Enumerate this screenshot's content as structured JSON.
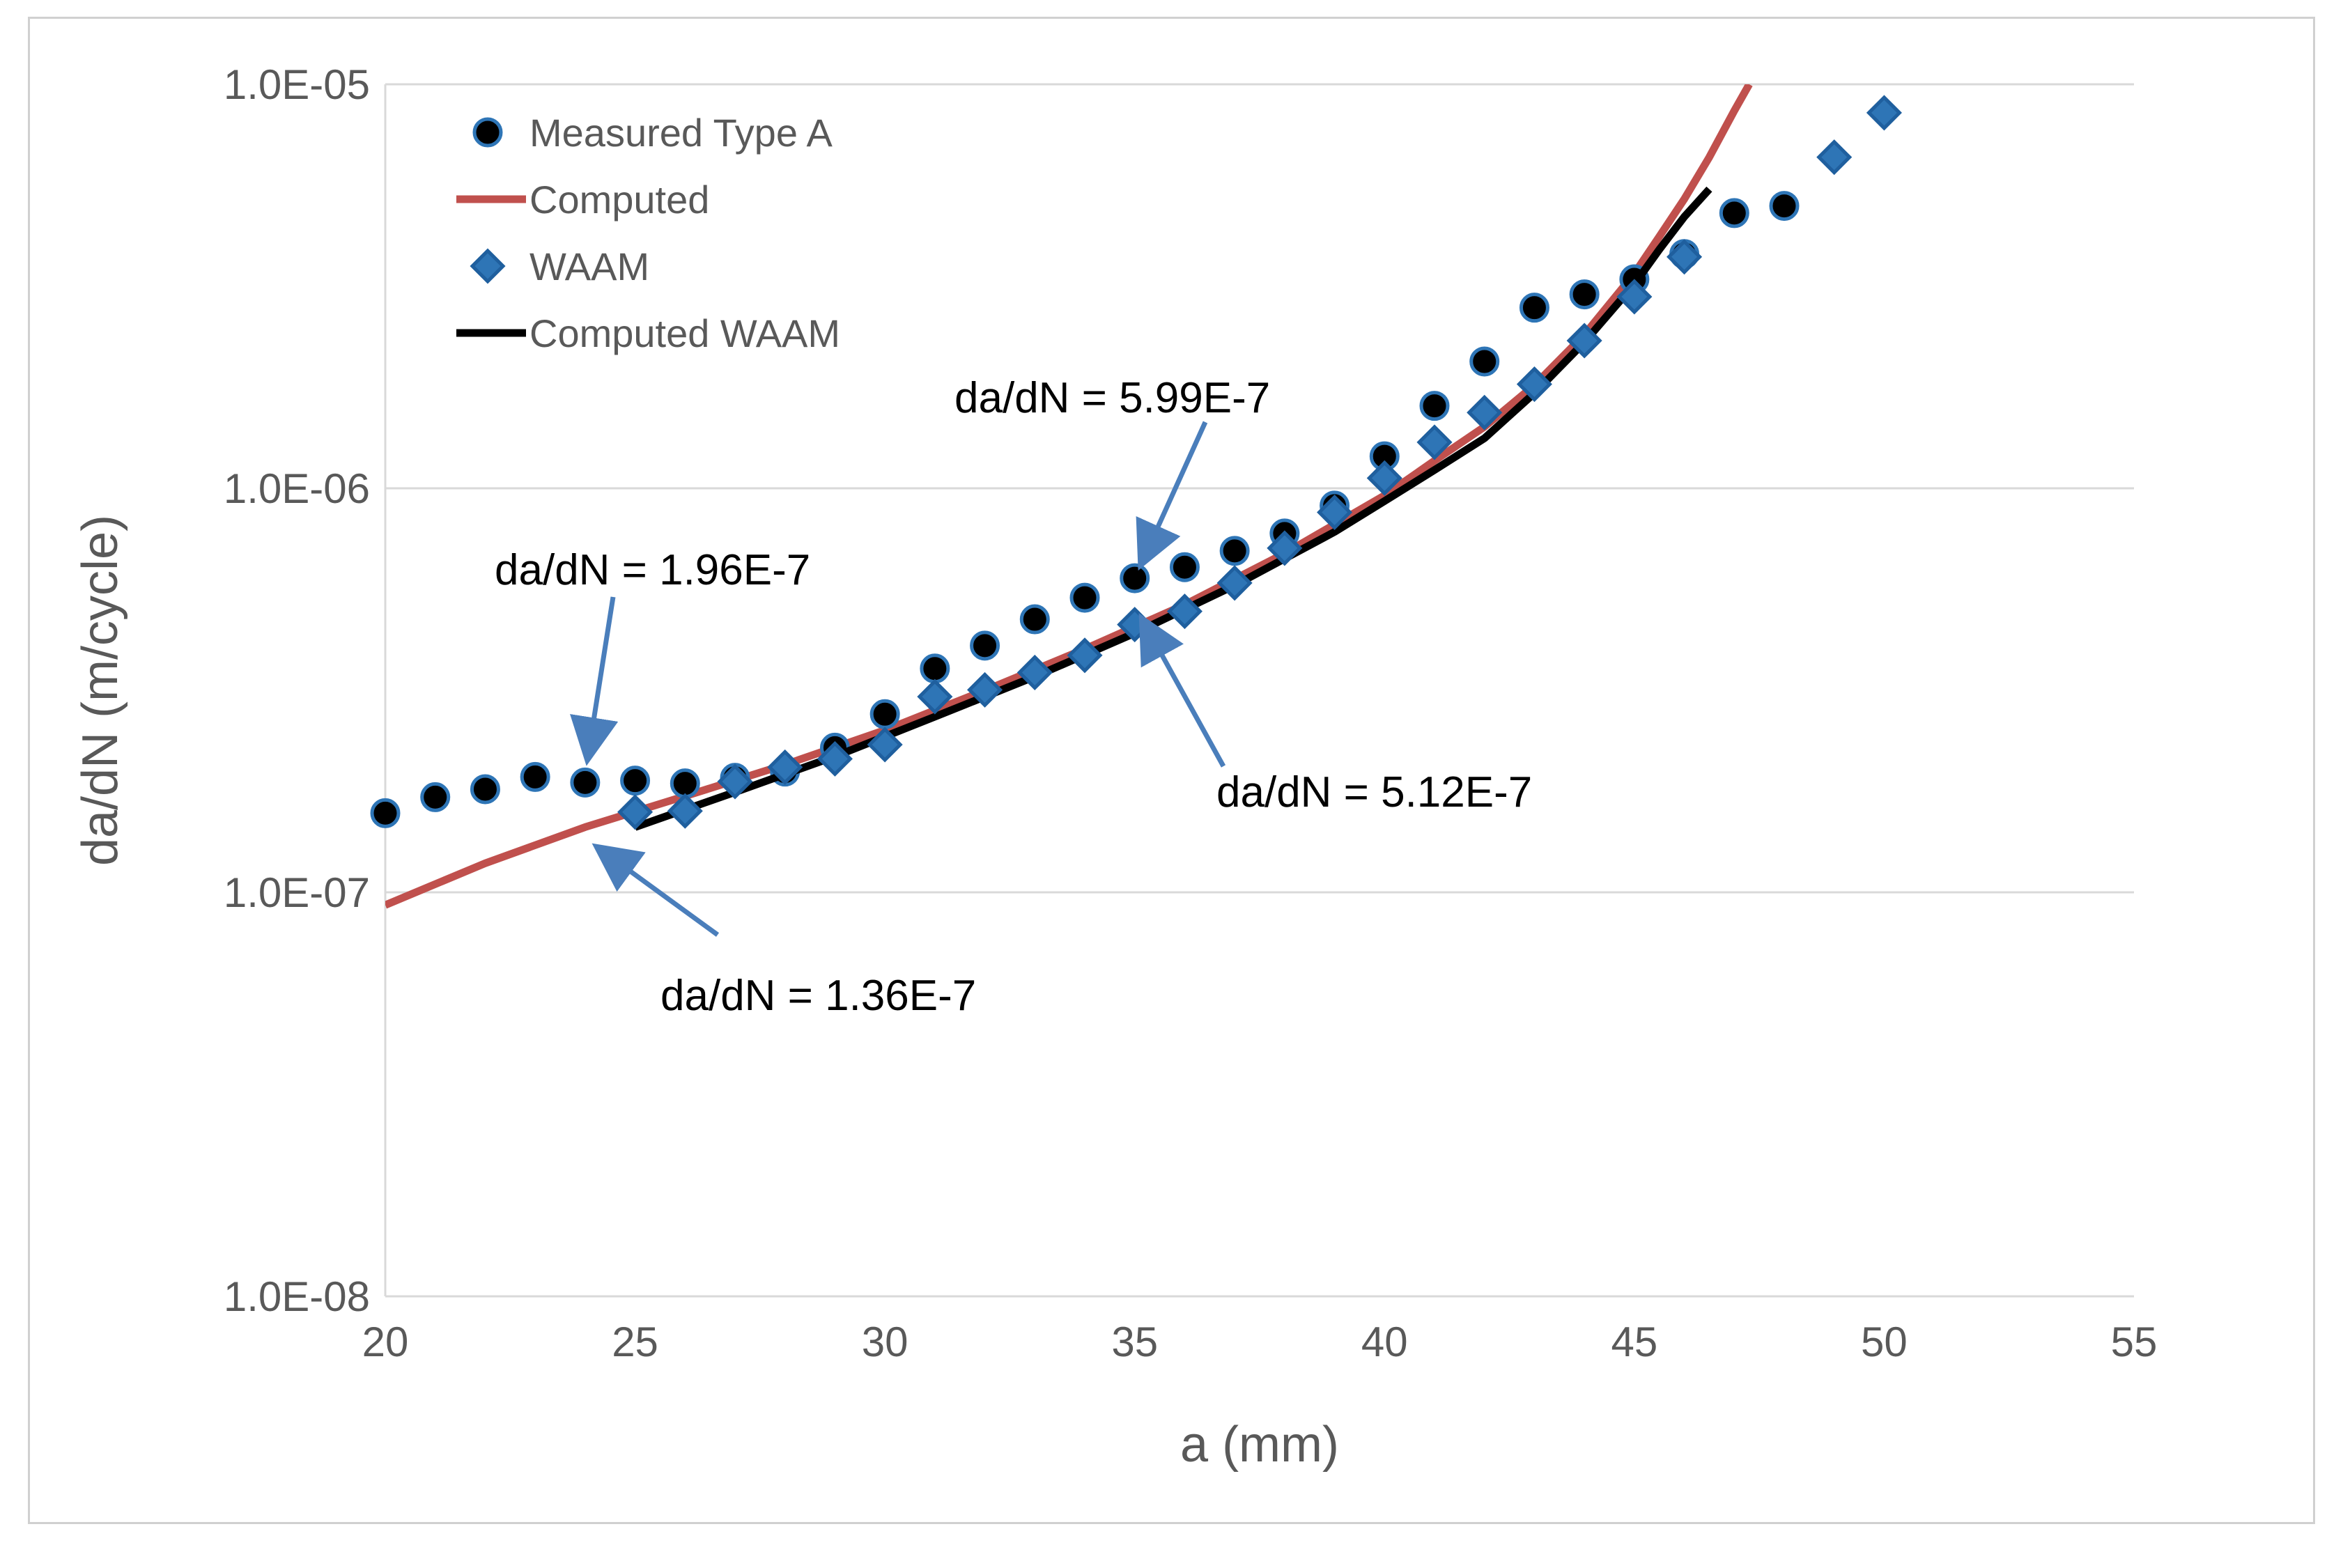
{
  "chart_data": {
    "type": "scatter",
    "title": "",
    "xlabel": "a (mm)",
    "ylabel": "da/dN (m/cycle)",
    "xlim": [
      20,
      55
    ],
    "ylim": [
      1e-08,
      1e-05
    ],
    "yscale": "log",
    "grid": true,
    "legend_position": "top-left",
    "x_ticks": [
      20,
      25,
      30,
      35,
      40,
      45,
      50,
      55
    ],
    "x_tick_labels": [
      "20",
      "25",
      "30",
      "35",
      "40",
      "45",
      "50",
      "55"
    ],
    "y_ticks": [
      1e-08,
      1e-07,
      1e-06,
      1e-05
    ],
    "y_tick_labels": [
      "1.0E-08",
      "1.0E-07",
      "1.0E-06",
      "1.0E-05"
    ],
    "series": [
      {
        "name": "Measured Type A",
        "kind": "marker",
        "marker": "circle",
        "color": "#000000",
        "edge_color": "#2e75b6",
        "x": [
          20,
          21,
          22,
          23,
          24,
          25,
          26,
          27,
          28,
          29,
          30,
          31,
          32,
          33,
          34,
          35,
          36,
          37,
          38,
          39,
          40,
          41,
          42,
          43,
          44,
          45,
          46,
          47,
          48
        ],
        "y": [
          1.57e-07,
          1.72e-07,
          1.8e-07,
          1.93e-07,
          1.87e-07,
          1.89e-07,
          1.86e-07,
          1.92e-07,
          1.99e-07,
          2.28e-07,
          2.76e-07,
          3.58e-07,
          4.08e-07,
          4.74e-07,
          5.36e-07,
          5.99e-07,
          6.38e-07,
          7e-07,
          7.73e-07,
          9.06e-07,
          1.2e-06,
          1.6e-06,
          2.06e-06,
          2.8e-06,
          3.02e-06,
          3.29e-06,
          3.8e-06,
          4.8e-06,
          5e-06
        ]
      },
      {
        "name": "Computed",
        "kind": "line",
        "color": "#c0504d",
        "x": [
          20,
          22,
          24,
          26,
          28,
          30,
          32,
          34,
          36,
          38,
          40,
          41,
          42,
          43,
          44,
          45,
          45.5,
          46,
          46.5,
          47,
          47.3
        ],
        "y": [
          9.3e-08,
          1.18e-07,
          1.45e-07,
          1.73e-07,
          2.07e-07,
          2.52e-07,
          3.16e-07,
          4e-07,
          5.15e-07,
          6.9e-07,
          9.6e-07,
          1.17e-06,
          1.42e-06,
          1.8e-06,
          2.4e-06,
          3.4e-06,
          4.2e-06,
          5.2e-06,
          6.6e-06,
          8.6e-06,
          1e-05
        ]
      },
      {
        "name": "WAAM",
        "kind": "marker",
        "marker": "diamond",
        "color": "#2e75b6",
        "edge_color": "#1f5f9e",
        "x": [
          25,
          26,
          27,
          28,
          29,
          30,
          31,
          32,
          33,
          34,
          35,
          36,
          37,
          38,
          39,
          40,
          41,
          42,
          43,
          44,
          45,
          46,
          49,
          50
        ],
        "y": [
          1.58e-07,
          1.59e-07,
          1.88e-07,
          2.04e-07,
          2.14e-07,
          2.32e-07,
          3.05e-07,
          3.17e-07,
          3.5e-07,
          3.86e-07,
          4.6e-07,
          4.96e-07,
          5.83e-07,
          7.11e-07,
          8.72e-07,
          1.06e-06,
          1.3e-06,
          1.54e-06,
          1.81e-06,
          2.32e-06,
          2.98e-06,
          3.74e-06,
          6.6e-06,
          8.5e-06
        ]
      },
      {
        "name": "Computed WAAM",
        "kind": "line",
        "color": "#000000",
        "x": [
          25,
          27,
          29,
          31,
          33,
          35,
          37,
          39,
          40,
          41,
          42,
          43,
          44,
          45,
          45.5,
          46,
          46.5
        ],
        "y": [
          1.45e-07,
          1.77e-07,
          2.17e-07,
          2.72e-07,
          3.42e-07,
          4.38e-07,
          5.75e-07,
          7.8e-07,
          9.3e-07,
          1.11e-06,
          1.33e-06,
          1.72e-06,
          2.3e-06,
          3.2e-06,
          3.9e-06,
          4.7e-06,
          5.5e-06
        ]
      }
    ],
    "annotations": [
      {
        "text": "da/dN = 1.96E-7",
        "target": [
          24,
          1.96e-07
        ]
      },
      {
        "text": "da/dN = 1.36E-7",
        "target": [
          24,
          1.36e-07
        ]
      },
      {
        "text": "da/dN = 5.99E-7",
        "target": [
          35,
          5.99e-07
        ]
      },
      {
        "text": "da/dN = 5.12E-7",
        "target": [
          35,
          5.12e-07
        ]
      }
    ]
  }
}
